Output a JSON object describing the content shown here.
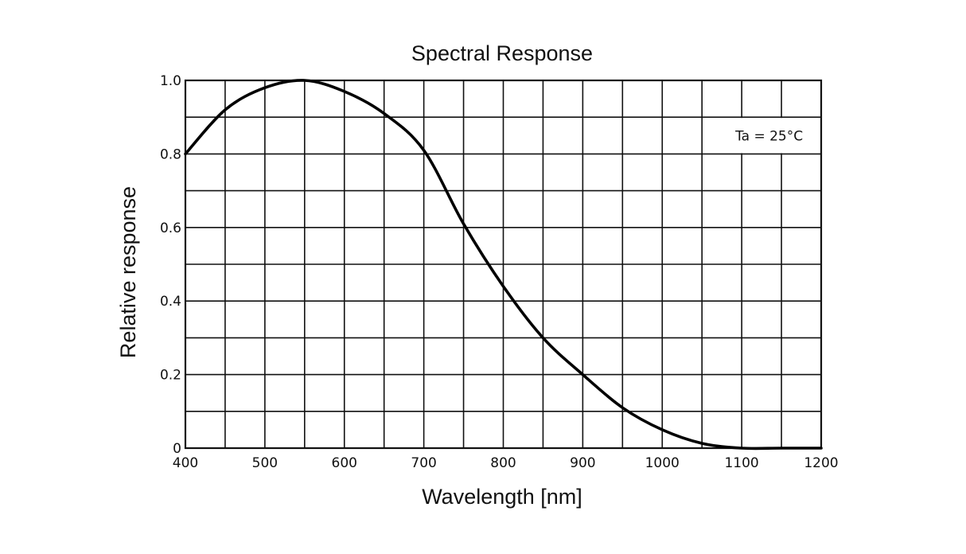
{
  "chart_data": {
    "type": "line",
    "title": "Spectral Response",
    "xlabel": "Wavelength [nm]",
    "ylabel": "Relative response",
    "xlim": [
      400,
      1200
    ],
    "ylim": [
      0,
      1.0
    ],
    "grid": true,
    "x_grid_step": 50,
    "y_grid_step": 0.1,
    "x_ticks": [
      400,
      500,
      600,
      700,
      800,
      900,
      1000,
      1100,
      1200
    ],
    "x_tick_labels": [
      "400",
      "500",
      "600",
      "700",
      "800",
      "900",
      "1000",
      "1100",
      "1200"
    ],
    "y_ticks": [
      0,
      0.2,
      0.4,
      0.6,
      0.8,
      1.0
    ],
    "y_tick_labels": [
      "0",
      "0.2",
      "0.4",
      "0.6",
      "0.8",
      "1.0"
    ],
    "annotation": "Ta = 25°C",
    "annotation_position": "top-right",
    "series": [
      {
        "name": "Relative response",
        "x": [
          400,
          450,
          500,
          550,
          600,
          650,
          700,
          750,
          800,
          850,
          900,
          950,
          1000,
          1050,
          1100,
          1150,
          1200
        ],
        "y": [
          0.8,
          0.92,
          0.98,
          1.0,
          0.97,
          0.91,
          0.81,
          0.61,
          0.44,
          0.3,
          0.2,
          0.11,
          0.05,
          0.013,
          0.0,
          0.0,
          0.0
        ]
      }
    ]
  }
}
